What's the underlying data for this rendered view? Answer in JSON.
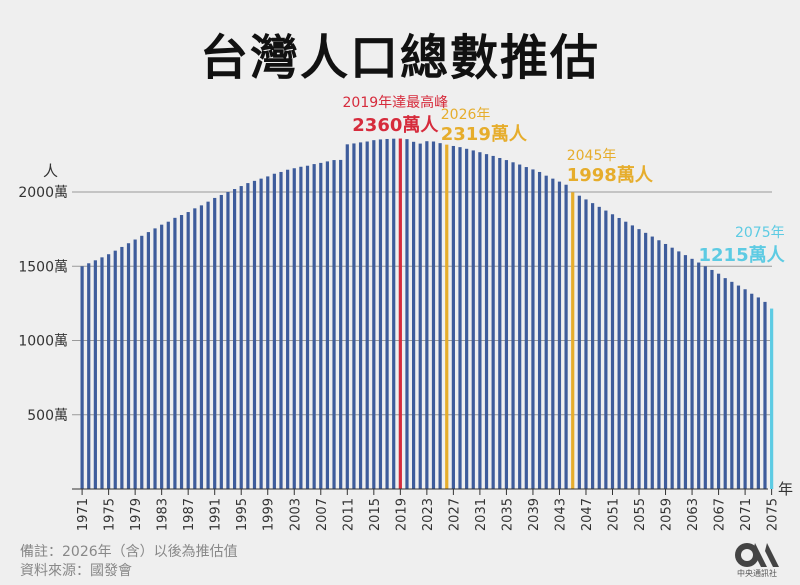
{
  "title": "台灣人口總數推估",
  "chart_data": {
    "type": "bar",
    "title": "台灣人口總數推估",
    "ylabel": "人",
    "xlabel": "年",
    "ylim": [
      0,
      2450
    ],
    "y_ticks": [
      {
        "value": 500,
        "label": "500萬"
      },
      {
        "value": 1000,
        "label": "1000萬"
      },
      {
        "value": 1500,
        "label": "1500萬"
      },
      {
        "value": 2000,
        "label": "2000萬"
      }
    ],
    "x_ticks": [
      "1971",
      "1975",
      "1979",
      "1983",
      "1987",
      "1991",
      "1995",
      "1999",
      "2003",
      "2007",
      "2011",
      "2015",
      "2019",
      "2023",
      "2027",
      "2031",
      "2035",
      "2039",
      "2043",
      "2047",
      "2051",
      "2055",
      "2059",
      "2063",
      "2067",
      "2071",
      "2075"
    ],
    "grid": "horizontal",
    "bar_color": "#3e5c9b",
    "years": [
      1971,
      1972,
      1973,
      1974,
      1975,
      1976,
      1977,
      1978,
      1979,
      1980,
      1981,
      1982,
      1983,
      1984,
      1985,
      1986,
      1987,
      1988,
      1989,
      1990,
      1991,
      1992,
      1993,
      1994,
      1995,
      1996,
      1997,
      1998,
      1999,
      2000,
      2001,
      2002,
      2003,
      2004,
      2005,
      2006,
      2007,
      2008,
      2009,
      2010,
      2011,
      2012,
      2013,
      2014,
      2015,
      2016,
      2017,
      2018,
      2019,
      2020,
      2021,
      2022,
      2023,
      2024,
      2025,
      2026,
      2027,
      2028,
      2029,
      2030,
      2031,
      2032,
      2033,
      2034,
      2035,
      2036,
      2037,
      2038,
      2039,
      2040,
      2041,
      2042,
      2043,
      2044,
      2045,
      2046,
      2047,
      2048,
      2049,
      2050,
      2051,
      2052,
      2053,
      2054,
      2055,
      2056,
      2057,
      2058,
      2059,
      2060,
      2061,
      2062,
      2063,
      2064,
      2065,
      2066,
      2067,
      2068,
      2069,
      2070,
      2071,
      2072,
      2073,
      2074,
      2075
    ],
    "values": [
      1500,
      1520,
      1540,
      1560,
      1581,
      1605,
      1630,
      1655,
      1680,
      1705,
      1730,
      1755,
      1780,
      1800,
      1826,
      1845,
      1865,
      1890,
      1910,
      1935,
      1960,
      1980,
      2000,
      2020,
      2040,
      2060,
      2075,
      2090,
      2105,
      2123,
      2135,
      2150,
      2160,
      2170,
      2177,
      2188,
      2196,
      2206,
      2215,
      2216,
      2321,
      2327,
      2334,
      2340,
      2349,
      2354,
      2357,
      2359,
      2360,
      2356,
      2338,
      2326,
      2342,
      2340,
      2329,
      2319,
      2310,
      2302,
      2291,
      2280,
      2268,
      2255,
      2243,
      2229,
      2215,
      2200,
      2185,
      2168,
      2152,
      2135,
      2110,
      2090,
      2070,
      2049,
      1998,
      1975,
      1950,
      1925,
      1900,
      1875,
      1850,
      1825,
      1800,
      1775,
      1750,
      1725,
      1700,
      1675,
      1650,
      1625,
      1600,
      1575,
      1550,
      1525,
      1500,
      1475,
      1450,
      1420,
      1395,
      1370,
      1345,
      1315,
      1290,
      1260,
      1215
    ],
    "highlights": [
      {
        "year": 2019,
        "color": "#d62b3c",
        "label_year": "2019年達最高峰",
        "label_value": "2360萬人"
      },
      {
        "year": 2026,
        "color": "#e6ad2c",
        "label_year": "2026年",
        "label_value": "2319萬人"
      },
      {
        "year": 2045,
        "color": "#e6ad2c",
        "label_year": "2045年",
        "label_value": "1998萬人"
      },
      {
        "year": 2075,
        "color": "#5dcbe3",
        "label_year": "2075年",
        "label_value": "1215萬人"
      }
    ]
  },
  "notes": {
    "line1": "備註：2026年（含）以後為推估值",
    "line2": "資料來源：國發會"
  },
  "logo": {
    "name": "CNA",
    "text": "中央通訊社"
  }
}
